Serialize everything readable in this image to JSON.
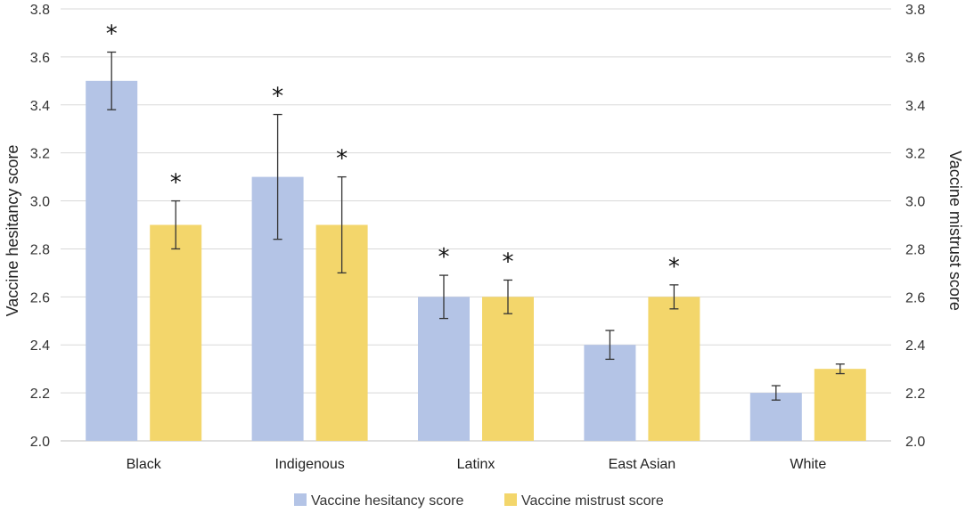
{
  "chart_data": {
    "type": "bar",
    "categories": [
      "Black",
      "Indigenous",
      "Latinx",
      "East Asian",
      "White"
    ],
    "series": [
      {
        "name": "Vaccine hesitancy score",
        "color": "#b4c4e6",
        "values": [
          3.5,
          3.1,
          2.6,
          2.4,
          2.2
        ],
        "error": [
          0.12,
          0.26,
          0.09,
          0.06,
          0.03
        ],
        "significant": [
          true,
          true,
          true,
          false,
          false
        ]
      },
      {
        "name": "Vaccine mistrust score",
        "color": "#f3d66b",
        "values": [
          2.9,
          2.9,
          2.6,
          2.6,
          2.3
        ],
        "error": [
          0.1,
          0.2,
          0.07,
          0.05,
          0.02
        ],
        "significant": [
          true,
          true,
          true,
          true,
          false
        ]
      }
    ],
    "significance_marker": "*",
    "ylabel_left": "Vaccine hesitancy score",
    "ylabel_right": "Vaccine mistrust score",
    "ylim": [
      2.0,
      3.8
    ],
    "yticks": [
      "2.0",
      "2.2",
      "2.4",
      "2.6",
      "2.8",
      "3.0",
      "3.2",
      "3.4",
      "3.6",
      "3.8"
    ],
    "grid": true,
    "legend": "bottom"
  }
}
